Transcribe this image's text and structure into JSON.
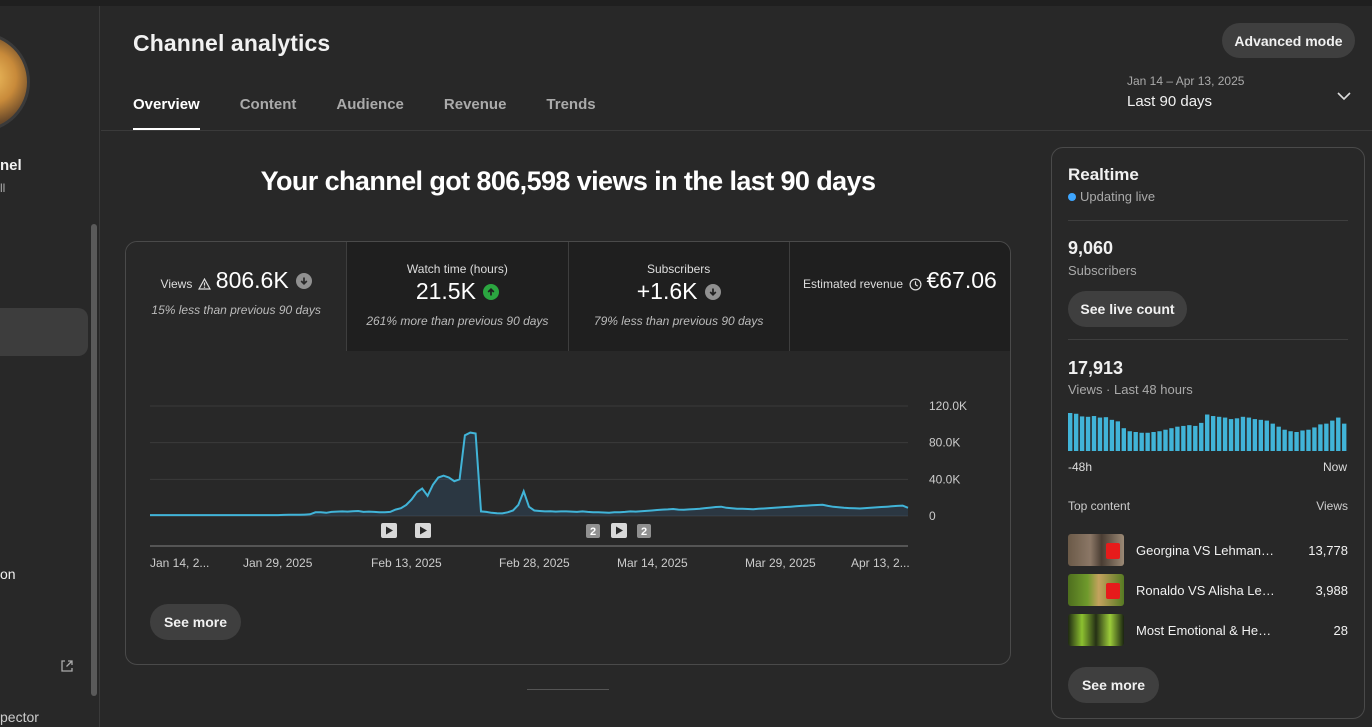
{
  "sidebar": {
    "channel_name": "nel",
    "channel_sub": "ll",
    "item_text": "on",
    "bottom_text": "pector"
  },
  "header": {
    "title": "Channel analytics",
    "advanced_mode": "Advanced mode",
    "tabs": [
      {
        "label": "Overview",
        "active": true
      },
      {
        "label": "Content",
        "active": false
      },
      {
        "label": "Audience",
        "active": false
      },
      {
        "label": "Revenue",
        "active": false
      },
      {
        "label": "Trends",
        "active": false
      }
    ],
    "date_range": "Jan 14 – Apr 13, 2025",
    "date_label": "Last 90 days",
    "date_icon": "chevron-down-icon"
  },
  "main": {
    "headline": "Your channel got 806,598 views in the last 90 days",
    "metrics": [
      {
        "label": "Views",
        "icon": "warning-icon",
        "value": "806.6K",
        "trend": "down",
        "sub": "15% less than previous 90 days"
      },
      {
        "label": "Watch time (hours)",
        "icon": "",
        "value": "21.5K",
        "trend": "up",
        "sub": "261% more than previous 90 days"
      },
      {
        "label": "Subscribers",
        "icon": "",
        "value": "+1.6K",
        "trend": "down",
        "sub": "79% less than previous 90 days"
      },
      {
        "label": "Estimated revenue",
        "icon": "clock-icon",
        "value": "€67.06",
        "trend": "",
        "sub": ""
      }
    ],
    "see_more": "See more"
  },
  "colors": {
    "accent_line": "#3ea6ff",
    "line": "#41b4d8",
    "up": "#2ba640",
    "down": "#909090",
    "live_dot": "#3ea6ff"
  },
  "chart_data": {
    "type": "area",
    "x_tick_labels": [
      "Jan 14, 2...",
      "Jan 29, 2025",
      "Feb 13, 2025",
      "Feb 28, 2025",
      "Mar 14, 2025",
      "Mar 29, 2025",
      "Apr 13, 2..."
    ],
    "y_tick_labels": [
      "120.0K",
      "80.0K",
      "40.0K",
      "0"
    ],
    "ylim": [
      0,
      120000
    ],
    "grid": true,
    "series": [
      {
        "values": [
          1000,
          1000,
          1000,
          1000,
          1000,
          1000,
          1000,
          1000,
          1000,
          1000,
          1000,
          1000,
          1000,
          1000,
          1000,
          1000,
          1000,
          1000,
          1000,
          1000,
          1000,
          1000,
          1000,
          1000,
          1000,
          1200,
          1300,
          1300,
          1300,
          1500,
          1800,
          4000,
          4200,
          3500,
          4500,
          4800,
          5000,
          4800,
          5200,
          5500,
          4500,
          4800,
          4500,
          4000,
          4200,
          4500,
          7000,
          8500,
          12000,
          18000,
          26000,
          30000,
          22000,
          34000,
          42000,
          44000,
          42000,
          38000,
          40000,
          88000,
          91000,
          90000,
          5000,
          4500,
          3500,
          3000,
          2800,
          4000,
          6000,
          12000,
          27000,
          10000,
          6000,
          5500,
          5000,
          5200,
          4800,
          5000,
          5000,
          4800,
          4500,
          5000,
          4500,
          4200,
          4000,
          3800,
          3600,
          4000,
          4200,
          4500,
          5000,
          4800,
          5200,
          5600,
          6000,
          6500,
          7000,
          7200,
          7600,
          7000,
          6800,
          7200,
          7500,
          8000,
          8600,
          9200,
          9800,
          10200,
          9000,
          8400,
          8000,
          7800,
          7600,
          7400,
          7800,
          8200,
          8600,
          9000,
          9400,
          9800,
          10200,
          10600,
          11000,
          11400,
          11800,
          12000,
          12200,
          11000,
          10000,
          9500,
          9000,
          8600,
          8400,
          8200,
          8600,
          9000,
          9400,
          9800,
          10200,
          10600,
          11000,
          11400,
          9000
        ],
        "note_skip": true
      }
    ],
    "markers": [
      {
        "type": "video",
        "label": ""
      },
      {
        "type": "video",
        "label": ""
      },
      {
        "type": "count",
        "label": "2"
      },
      {
        "type": "video",
        "label": ""
      },
      {
        "type": "count",
        "label": "2"
      }
    ]
  },
  "realtime": {
    "title": "Realtime",
    "live_text": "Updating live",
    "subscribers_value": "9,060",
    "subscribers_label": "Subscribers",
    "see_live_count": "See live count",
    "views_value": "17,913",
    "views_label": "Views · Last 48 hours",
    "bars": [
      100,
      98,
      91,
      90,
      92,
      88,
      89,
      82,
      78,
      60,
      52,
      50,
      48,
      48,
      50,
      52,
      56,
      60,
      64,
      66,
      68,
      66,
      74,
      96,
      92,
      90,
      88,
      84,
      86,
      90,
      88,
      84,
      82,
      80,
      72,
      64,
      56,
      52,
      50,
      54,
      56,
      62,
      70,
      72,
      80,
      88,
      72
    ],
    "axis_start": "-48h",
    "axis_end": "Now",
    "top_content_label": "Top content",
    "views_col_label": "Views",
    "top_content": [
      {
        "title": "Georgina VS Lehmann V...",
        "views": "13,778"
      },
      {
        "title": "Ronaldo VS Alisha Lehm...",
        "views": "3,988"
      },
      {
        "title": "Most Emotional & Heartbrea...",
        "views": "28"
      }
    ],
    "see_more": "See more"
  }
}
